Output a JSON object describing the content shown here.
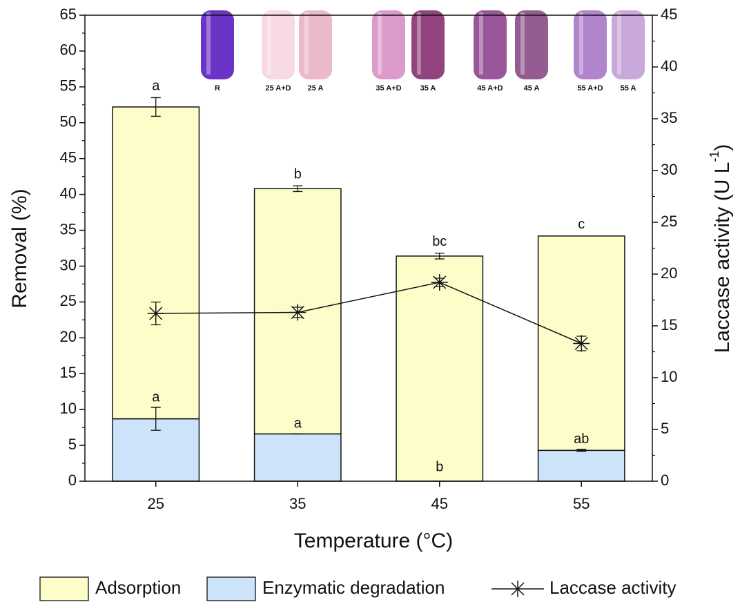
{
  "chart_data": {
    "type": "bar",
    "xlabel": "Temperature (°C)",
    "ylabel": "Removal (%)",
    "y2label": [
      "Laccase activity (U L",
      "-1",
      ")"
    ],
    "categories": [
      "25",
      "35",
      "45",
      "55"
    ],
    "series": [
      {
        "name": "Adsorption",
        "color": "#fdfdca",
        "values": [
          43.5,
          34.2,
          31.4,
          29.9
        ],
        "errors": [
          1.3,
          0.4,
          0.4,
          0
        ]
      },
      {
        "name": "Enzymatic degradation",
        "color": "#cce3fa",
        "values": [
          8.7,
          6.6,
          0,
          4.3
        ],
        "errors": [
          1.6,
          0,
          0,
          0.15
        ]
      },
      {
        "name": "Laccase activity",
        "type": "line",
        "axis": "y2",
        "color": "#111111",
        "values": [
          16.2,
          16.3,
          19.2,
          13.3
        ],
        "errors": [
          1.1,
          0.5,
          0.4,
          0.7
        ]
      }
    ],
    "top_letters": [
      "a",
      "b",
      "bc",
      "c"
    ],
    "bottom_letters": [
      "a",
      "a",
      "b",
      "ab"
    ],
    "ylim": [
      0,
      65
    ],
    "yticks": [
      0,
      5,
      10,
      15,
      20,
      25,
      30,
      35,
      40,
      45,
      50,
      55,
      60,
      65
    ],
    "y2lim": [
      0,
      45
    ],
    "y2ticks": [
      0,
      5,
      10,
      15,
      20,
      25,
      30,
      35,
      40,
      45
    ],
    "inset_labels": [
      "R",
      "25 A+D",
      "25 A",
      "35 A+D",
      "35 A",
      "45 A+D",
      "45 A",
      "55 A+D",
      "55 A"
    ],
    "inset_colors": [
      "#5a1fc0",
      "#f6d6e0",
      "#e8b2c4",
      "#d690c4",
      "#85306f",
      "#8d4590",
      "#8a4a86",
      "#a978c6",
      "#c39ed8"
    ]
  }
}
